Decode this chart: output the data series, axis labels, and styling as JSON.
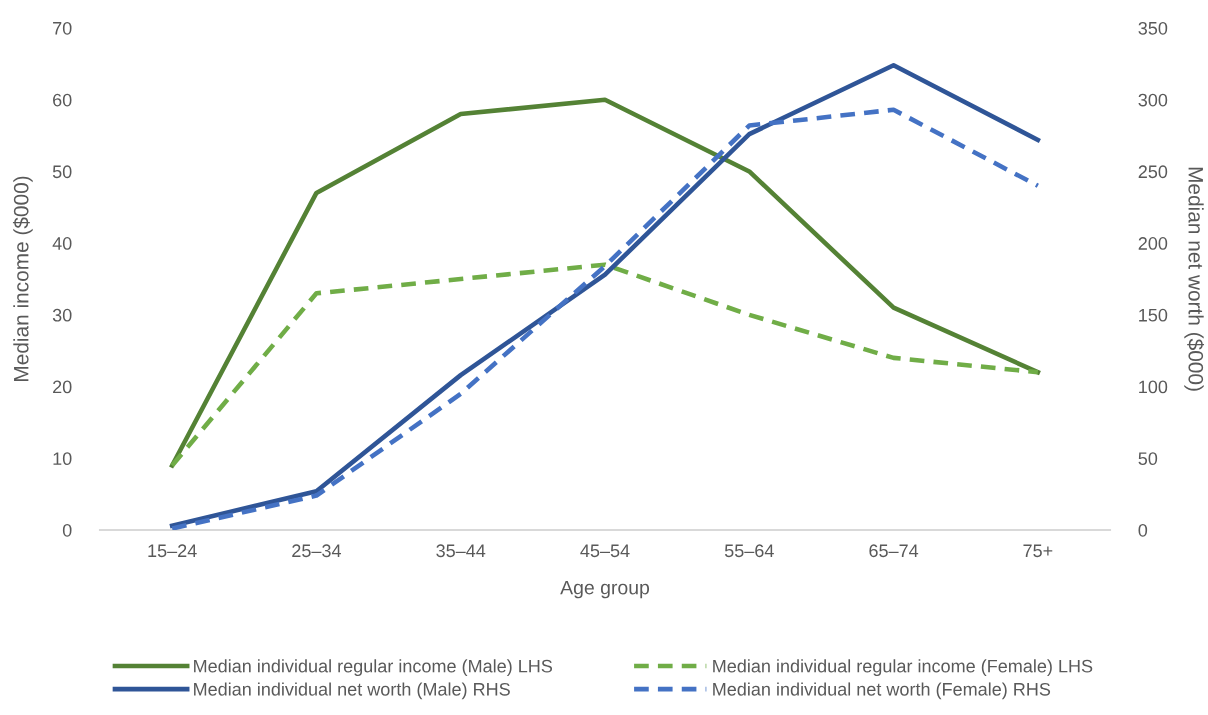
{
  "chart_data": {
    "type": "line",
    "xlabel": "Age group",
    "ylabel": "Median income ($000)",
    "y2label": "Median net worth ($000)",
    "categories": [
      "15–24",
      "25–34",
      "35–44",
      "45–54",
      "55–64",
      "65–74",
      "75+"
    ],
    "ylim": [
      0,
      70
    ],
    "yticks": [
      0,
      10,
      20,
      30,
      40,
      50,
      60,
      70
    ],
    "y2lim": [
      0,
      350
    ],
    "y2ticks": [
      0,
      50,
      100,
      150,
      200,
      250,
      300,
      350
    ],
    "grid": false,
    "legend": "bottom",
    "marker": "none",
    "series": [
      {
        "name": "Median individual regular income (Male) LHS",
        "color": "#548235",
        "line_style": "solid",
        "values": [
          9,
          47,
          58,
          60,
          50,
          31,
          22
        ]
      },
      {
        "name": "Median individual regular income (Female) LHS",
        "color": "#70ad47",
        "line_style": "dashed",
        "values": [
          9,
          33,
          35,
          37,
          30,
          24,
          22
        ]
      },
      {
        "name": "Median individual net worth (Male) RHS",
        "color": "#2f5597",
        "line_style": "solid",
        "axis": "y2",
        "values": [
          3,
          27,
          108,
          178,
          276,
          324,
          272
        ]
      },
      {
        "name": "Median individual net worth (Female) RHS",
        "color": "#4472c4",
        "line_style": "dashed",
        "axis": "y2",
        "values": [
          1,
          24,
          95,
          184,
          282,
          293,
          240
        ]
      }
    ]
  }
}
